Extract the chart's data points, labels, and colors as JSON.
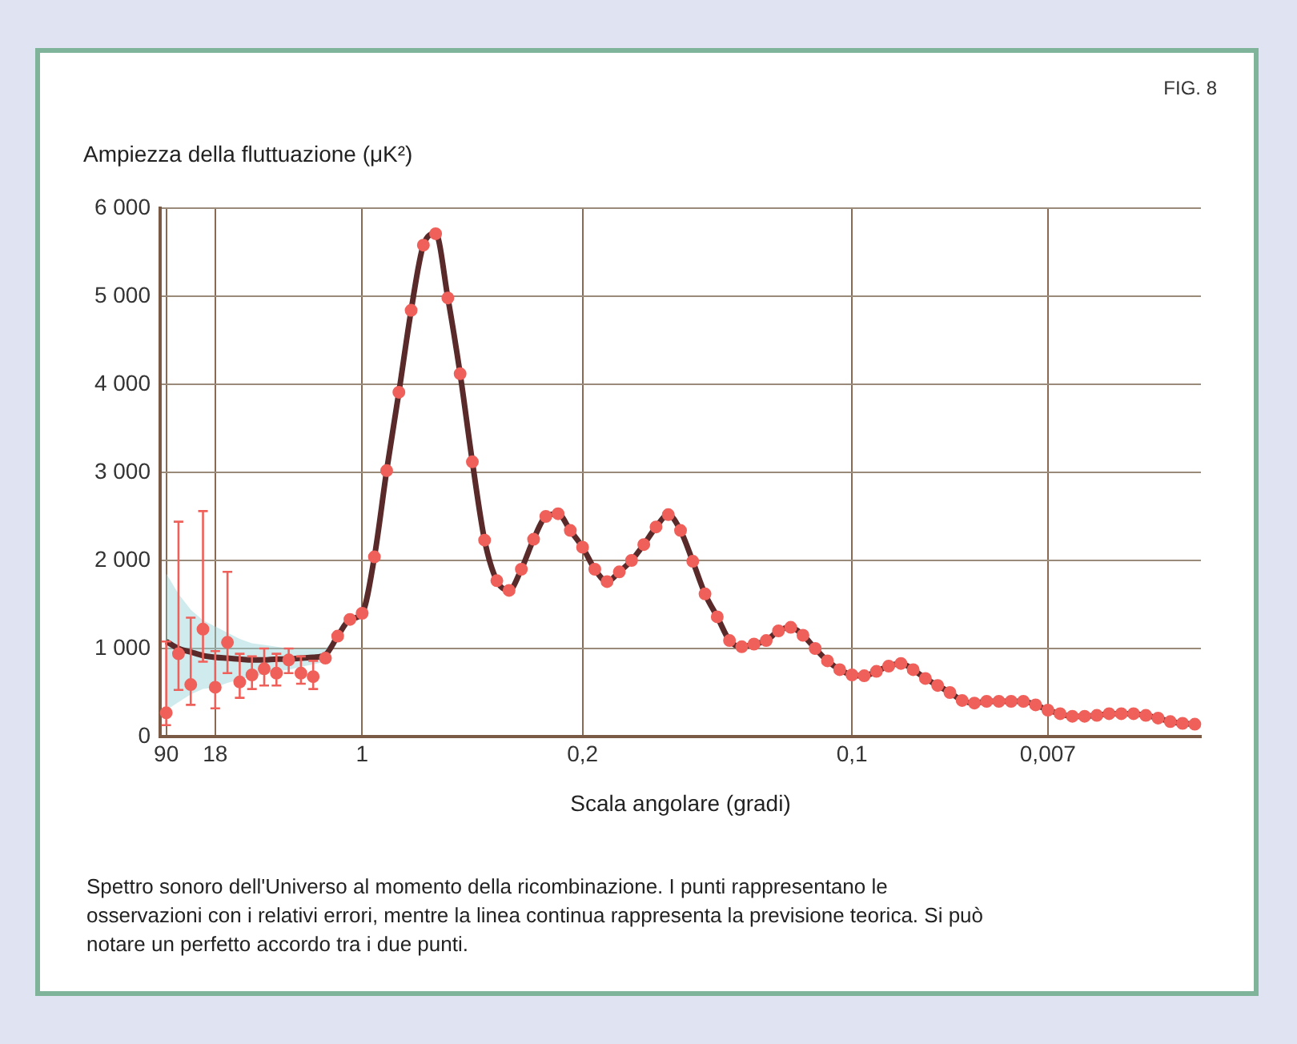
{
  "chart_data": {
    "type": "scatter",
    "xlabel": "Scala angolare (gradi)",
    "ylabel": "Ampiezza della fluttuazione (μK²)",
    "annotations": [
      "FIG. 8",
      "Spettro sonoro dell'Universo al momento della ricombinazione. I punti rappresentano le osservazioni con i relativi errori, mentre la linea continua rappresenta la previsione teorica. Si può notare un perfetto accordo tra i due punti."
    ],
    "categories": [
      "90",
      null,
      null,
      null,
      "18",
      null,
      null,
      null,
      null,
      null,
      null,
      null,
      null,
      null,
      null,
      null,
      "1",
      null,
      null,
      null,
      null,
      null,
      null,
      null,
      null,
      null,
      null,
      null,
      null,
      null,
      null,
      null,
      null,
      null,
      "0,2",
      null,
      null,
      null,
      null,
      null,
      null,
      null,
      null,
      null,
      null,
      null,
      null,
      null,
      null,
      null,
      null,
      null,
      null,
      null,
      null,
      null,
      "0,1",
      null,
      null,
      null,
      null,
      null,
      null,
      null,
      null,
      null,
      null,
      null,
      null,
      null,
      null,
      null,
      "0,007",
      null,
      null,
      null,
      null,
      null,
      null,
      null,
      null,
      null,
      null,
      null,
      null
    ],
    "ylim": [
      0,
      6000
    ],
    "yticks": [
      0,
      {
        "value": 1000,
        "label": "1 000"
      },
      {
        "value": 2000,
        "label": "2 000"
      },
      {
        "value": 3000,
        "label": "3 000"
      },
      {
        "value": 4000,
        "label": "4 000"
      },
      {
        "value": 5000,
        "label": "5 000"
      },
      {
        "value": 6000,
        "label": "6 000"
      }
    ],
    "grid": true,
    "series": [
      {
        "type": "line",
        "color": "#5a2a2a",
        "marker": "none",
        "values": [
          1080,
          1000,
          960,
          920,
          900,
          890,
          880,
          870,
          870,
          880,
          880,
          890,
          900,
          930,
          1140,
          1330,
          1400,
          2040,
          3020,
          3910,
          4840,
          5580,
          5710,
          4980,
          4120,
          3120,
          2230,
          1770,
          1660,
          1900,
          2240,
          2500,
          2530,
          2340,
          2150,
          1900,
          1760,
          1870,
          2000,
          2180,
          2380,
          2520,
          2340,
          1990,
          1620,
          1360,
          1090,
          1020,
          1050,
          1090,
          1200,
          1240,
          1150,
          1000,
          860,
          760,
          700,
          690,
          740,
          800,
          830,
          760,
          660,
          580,
          500,
          410,
          380,
          400,
          400,
          400,
          400,
          360,
          300,
          260,
          230,
          230,
          240,
          260,
          260,
          260,
          240,
          210,
          170,
          150,
          140
        ],
        "lower": [
          300,
          390,
          480,
          540,
          560,
          610,
          650,
          680,
          710,
          740,
          760,
          790,
          820,
          850,
          1140,
          null,
          null,
          null,
          null,
          null,
          null,
          null,
          null,
          null,
          null,
          null,
          null,
          null,
          null,
          null,
          null,
          null,
          null,
          null,
          null,
          null,
          null,
          null,
          null,
          null,
          null,
          null,
          null,
          null,
          null,
          null,
          null,
          null,
          null,
          null,
          null,
          null,
          null,
          null,
          null,
          null,
          null,
          null,
          null,
          null,
          null,
          null,
          null,
          null,
          null,
          null,
          null,
          null,
          null,
          null,
          null,
          null,
          null,
          null,
          null,
          null,
          null,
          null,
          null,
          null,
          null,
          null,
          null,
          null,
          null
        ],
        "upper": [
          1850,
          1620,
          1440,
          1320,
          1250,
          1180,
          1110,
          1060,
          1040,
          1020,
          1000,
          1000,
          1000,
          1000,
          1140,
          null,
          null,
          null,
          null,
          null,
          null,
          null,
          null,
          null,
          null,
          null,
          null,
          null,
          null,
          null,
          null,
          null,
          null,
          null,
          null,
          null,
          null,
          null,
          null,
          null,
          null,
          null,
          null,
          null,
          null,
          null,
          null,
          null,
          null,
          null,
          null,
          null,
          null,
          null,
          null,
          null,
          null,
          null,
          null,
          null,
          null,
          null,
          null,
          null,
          null,
          null,
          null,
          null,
          null,
          null,
          null,
          null,
          null,
          null,
          null,
          null,
          null,
          null,
          null,
          null,
          null,
          null,
          null,
          null,
          null
        ]
      },
      {
        "color": "#f0605a",
        "marker": "circle",
        "values": [
          270,
          940,
          590,
          1220,
          560,
          1070,
          620,
          700,
          770,
          720,
          870,
          720,
          680,
          890,
          1140,
          1330,
          1400,
          2040,
          3020,
          3910,
          4840,
          5580,
          5710,
          4980,
          4120,
          3120,
          2230,
          1770,
          1660,
          1900,
          2240,
          2500,
          2530,
          2340,
          2150,
          1900,
          1760,
          1870,
          2000,
          2180,
          2380,
          2520,
          2340,
          1990,
          1620,
          1360,
          1090,
          1020,
          1050,
          1090,
          1200,
          1240,
          1150,
          1000,
          860,
          760,
          700,
          690,
          740,
          800,
          830,
          760,
          660,
          580,
          500,
          410,
          380,
          400,
          400,
          400,
          400,
          360,
          300,
          260,
          230,
          230,
          240,
          260,
          260,
          260,
          240,
          210,
          170,
          150,
          140
        ],
        "errors": [
          [
            130,
            1080
          ],
          [
            530,
            2440
          ],
          [
            360,
            1350
          ],
          [
            850,
            2560
          ],
          [
            320,
            970
          ],
          [
            720,
            1870
          ],
          [
            440,
            940
          ],
          [
            540,
            910
          ],
          [
            580,
            1000
          ],
          [
            580,
            940
          ],
          [
            720,
            1000
          ],
          [
            600,
            910
          ],
          [
            540,
            860
          ],
          null,
          null,
          null,
          null,
          null,
          null,
          null,
          null,
          null,
          null,
          null,
          null,
          null,
          null,
          null,
          null,
          null,
          null,
          null,
          null,
          null,
          null,
          null,
          null,
          null,
          null,
          null,
          null,
          null,
          null,
          null,
          null,
          null,
          null,
          null,
          null,
          null,
          null,
          null,
          null,
          null,
          null,
          null,
          null,
          null,
          null,
          null,
          null,
          null,
          null,
          null,
          null,
          null,
          null,
          null,
          null,
          null,
          null,
          null,
          null,
          null,
          null,
          null,
          null,
          null,
          null,
          null,
          null,
          null,
          null,
          null,
          null
        ]
      }
    ]
  }
}
